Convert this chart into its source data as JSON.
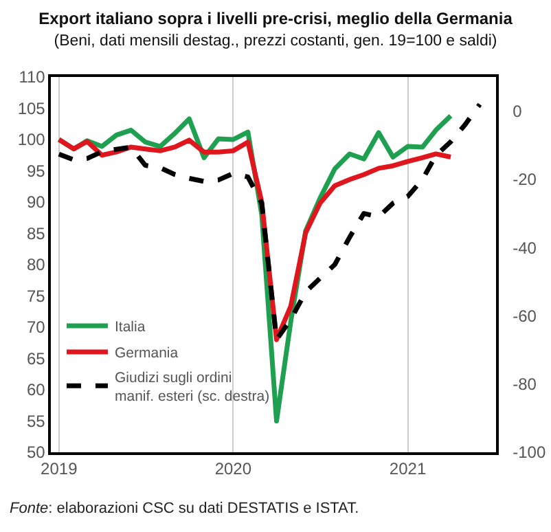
{
  "chart_data": {
    "type": "line",
    "title": "Export italiano sopra i livelli pre-crisi, meglio della Germania",
    "subtitle": "(Beni, dati mensili destag., prezzi costanti, gen. 19=100 e saldi)",
    "annotations": [
      "Fonte: elaborazioni CSC su dati DESTATIS e ISTAT."
    ],
    "x": [
      "2019-01",
      "2019-02",
      "2019-03",
      "2019-04",
      "2019-05",
      "2019-06",
      "2019-07",
      "2019-08",
      "2019-09",
      "2019-10",
      "2019-11",
      "2019-12",
      "2020-01",
      "2020-02",
      "2020-03",
      "2020-04",
      "2020-05",
      "2020-06",
      "2020-07",
      "2020-08",
      "2020-09",
      "2020-10",
      "2020-11",
      "2020-12",
      "2021-01",
      "2021-02",
      "2021-03",
      "2021-04",
      "2021-05",
      "2021-06"
    ],
    "series": [
      {
        "name": "Italia",
        "color": "#1fa050",
        "values": [
          100,
          98.5,
          99.8,
          98.9,
          100.7,
          101.5,
          99.6,
          98.9,
          101,
          103.3,
          97.1,
          100.1,
          100,
          101.2,
          88,
          55,
          71,
          85.4,
          90.6,
          95.3,
          97.7,
          96.9,
          101.1,
          97.2,
          98.9,
          98.8,
          101.5,
          103.8,
          null,
          null
        ]
      },
      {
        "name": "Germania",
        "color": "#e0161e",
        "values": [
          100,
          98.5,
          99.7,
          97.5,
          98,
          98.8,
          98.5,
          98.2,
          98.8,
          99.9,
          98,
          98,
          98.2,
          99.6,
          90,
          68,
          73.4,
          85.1,
          89.8,
          92.6,
          93.6,
          94.4,
          95.4,
          95.8,
          96.5,
          97.1,
          97.7,
          97.2,
          null,
          null
        ]
      },
      {
        "name": "Giudizi sugli ordini\nmanif. esteri (sc. destra)",
        "color": "#000000",
        "axis": "y2",
        "line_style": "dashed",
        "values": [
          -12.6,
          -14.3,
          -13.9,
          -11.9,
          -11.2,
          -10.6,
          -15.9,
          -16.6,
          -18.6,
          -19.7,
          -20.6,
          -20.2,
          -18.3,
          -19.3,
          -27,
          -67,
          -61,
          -53,
          -49,
          -45,
          -37,
          -30,
          -31,
          -27,
          -25,
          -20,
          -13,
          -9,
          -4,
          2
        ]
      }
    ],
    "xlim": [
      "2018-12-15",
      "2021-07-05"
    ],
    "xticks": [
      {
        "value": "2019-01-01",
        "label": "2019"
      },
      {
        "value": "2020-01-01",
        "label": "2020"
      },
      {
        "value": "2021-01-01",
        "label": "2021"
      }
    ],
    "ylim": [
      50,
      110
    ],
    "yticks": [
      50,
      55,
      60,
      65,
      70,
      75,
      80,
      85,
      90,
      95,
      100,
      105,
      110
    ],
    "y2lim": [
      -100,
      10
    ],
    "y2ticks": [
      -100,
      -80,
      -60,
      -40,
      -20,
      0
    ],
    "grid": "x",
    "legend": "bottom left",
    "line_style": "solid",
    "marker": "none"
  }
}
